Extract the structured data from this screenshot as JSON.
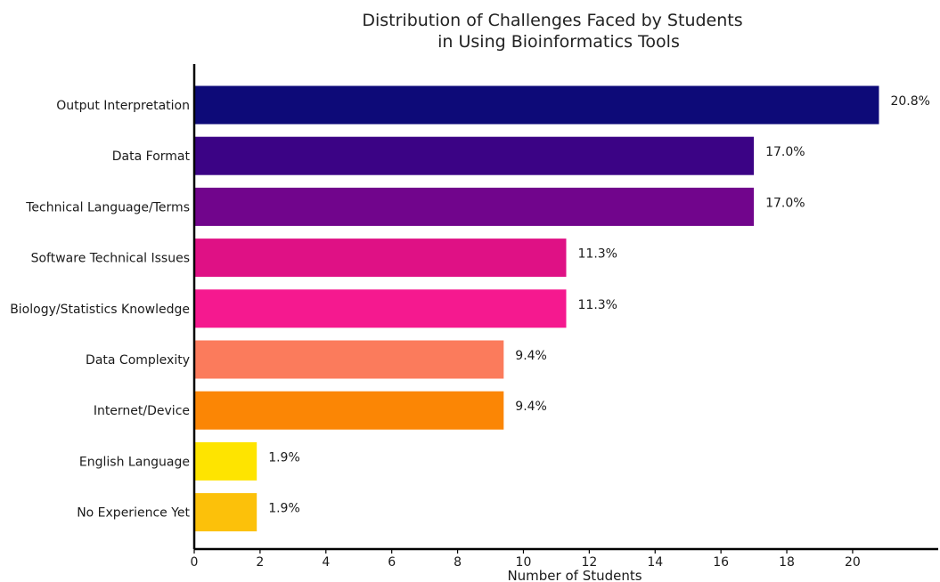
{
  "chart_data": {
    "type": "bar",
    "orientation": "horizontal",
    "title_lines": [
      "Distribution of Challenges Faced by Students",
      "in Using Bioinformatics Tools"
    ],
    "xlabel": "Number of Students",
    "ylabel": "",
    "xlim": [
      0,
      22.6
    ],
    "xticks": [
      0,
      2,
      4,
      6,
      8,
      10,
      12,
      14,
      16,
      18,
      20
    ],
    "grid": false,
    "categories": [
      "Output Interpretation",
      "Data Format",
      "Technical Language/Terms",
      "Software Technical Issues",
      "Biology/Statistics Knowledge",
      "Data Complexity",
      "Internet/Device",
      "English Language",
      "No Experience Yet"
    ],
    "values": [
      20.8,
      17.0,
      17.0,
      11.3,
      11.3,
      9.4,
      9.4,
      1.9,
      1.9
    ],
    "labels": [
      "20.8%",
      "17.0%",
      "17.0%",
      "11.3%",
      "11.3%",
      "9.4%",
      "9.4%",
      "1.9%",
      "1.9%"
    ],
    "colors": [
      "#0d0a78",
      "#3b0385",
      "#71058c",
      "#df1185",
      "#f5198f",
      "#fb7b5c",
      "#fb8605",
      "#fee400",
      "#fcc10a"
    ]
  }
}
